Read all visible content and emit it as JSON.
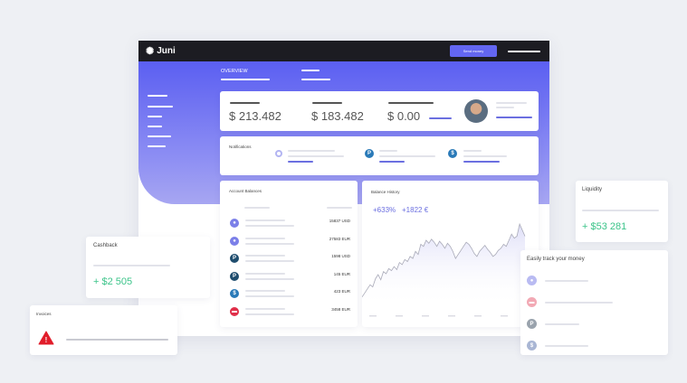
{
  "app": {
    "logo": "Juni",
    "send_button": "Send money"
  },
  "tabs": [
    {
      "label": "OVERVIEW",
      "active": true
    },
    {
      "label": "",
      "active": false
    }
  ],
  "summary": {
    "values": [
      "$ 213.482",
      "$ 183.482",
      "$ 0.00"
    ]
  },
  "notifications": {
    "title": "Notifications"
  },
  "account_balances": {
    "title": "Account Balances",
    "rows": [
      {
        "icon": "coin-icon",
        "color": "#7b7fe8",
        "amount": "15837 USD"
      },
      {
        "icon": "coin-icon",
        "color": "#7b7fe8",
        "amount": "27583 EUR"
      },
      {
        "icon": "paypal-icon",
        "color": "#1f4d6e",
        "amount": "1598 USD"
      },
      {
        "icon": "paypal-icon",
        "color": "#1f4d6e",
        "amount": "145 EUR"
      },
      {
        "icon": "dollar-icon",
        "color": "#2a7ab8",
        "amount": "423 EUR"
      },
      {
        "icon": "card-icon",
        "color": "#e0304a",
        "amount": "3458 EUR"
      }
    ]
  },
  "balance_history": {
    "title": "Balance History",
    "percent": "+633%",
    "delta": "+1822 €",
    "series": [
      10,
      14,
      18,
      22,
      20,
      28,
      32,
      27,
      35,
      33,
      38,
      36,
      40,
      37,
      44,
      42,
      47,
      45,
      50,
      48,
      55,
      52,
      62,
      60,
      66,
      63,
      67,
      64,
      60,
      65,
      62,
      58,
      63,
      60,
      55,
      48,
      52,
      56,
      60,
      64,
      62,
      58,
      53,
      50,
      55,
      58,
      61,
      57,
      54,
      50,
      52,
      56,
      58,
      62,
      60,
      66,
      72,
      68,
      70,
      82,
      76,
      70
    ]
  },
  "cashback": {
    "title": "Cashback",
    "value": "+ $2 505"
  },
  "invoices": {
    "title": "Invoices"
  },
  "liquidity": {
    "title": "Liquidity",
    "value": "+ $53 281"
  },
  "track": {
    "title": "Easily track your money",
    "rows": [
      {
        "icon": "coin-icon",
        "color": "#b9bbf2"
      },
      {
        "icon": "card-icon",
        "color": "#f2a9b4"
      },
      {
        "icon": "paypal-icon",
        "color": "#9aa3ad"
      },
      {
        "icon": "dollar-icon",
        "color": "#a9b6d4"
      }
    ]
  },
  "colors": {
    "accent": "#6366f1",
    "positive": "#3cc48a",
    "header": "#1c1c22"
  }
}
